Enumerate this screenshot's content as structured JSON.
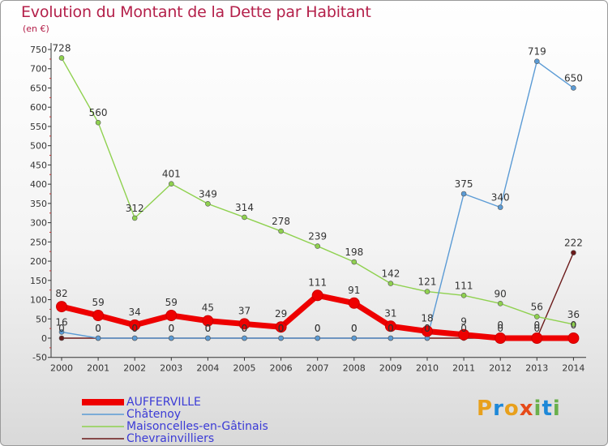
{
  "chart_data": {
    "type": "line",
    "title": "Evolution du Montant de la Dette par Habitant",
    "subtitle": "(en €)",
    "x": [
      "2000",
      "2001",
      "2002",
      "2003",
      "2004",
      "2005",
      "2006",
      "2007",
      "2008",
      "2009",
      "2010",
      "2011",
      "2012",
      "2013",
      "2014"
    ],
    "ylim": [
      -50,
      750
    ],
    "yticks": [
      -50,
      0,
      50,
      100,
      150,
      200,
      250,
      300,
      350,
      400,
      450,
      500,
      550,
      600,
      650,
      700,
      750
    ],
    "grid": false,
    "legend_position": "bottom-left",
    "series": [
      {
        "name": "AUFFERVILLE",
        "color": "#ee0000",
        "values": [
          82,
          59,
          34,
          59,
          45,
          37,
          29,
          111,
          91,
          31,
          18,
          9,
          0,
          0,
          0
        ],
        "labels": [
          "82",
          "59",
          "34",
          "59",
          "45",
          "37",
          "29",
          "111",
          "91",
          "31",
          "18",
          "9",
          "0",
          "0",
          "0"
        ]
      },
      {
        "name": "Châtenoy",
        "color": "#5b9bd5",
        "values": [
          16,
          0,
          0,
          0,
          0,
          0,
          0,
          0,
          0,
          0,
          0,
          375,
          340,
          719,
          650
        ],
        "labels": [
          "16",
          "0",
          "0",
          "0",
          "0",
          "0",
          "0",
          "0",
          "0",
          "0",
          "0",
          "375",
          "340",
          "719",
          "650"
        ]
      },
      {
        "name": "Maisoncelles-en-Gâtinais",
        "color": "#8fd14f",
        "values": [
          728,
          560,
          312,
          401,
          349,
          314,
          278,
          239,
          198,
          142,
          121,
          111,
          90,
          56,
          36
        ],
        "labels": [
          "728",
          "560",
          "312",
          "401",
          "349",
          "314",
          "278",
          "239",
          "198",
          "142",
          "121",
          "111",
          "90",
          "56",
          "36"
        ]
      },
      {
        "name": "Chevrainvilliers",
        "color": "#6b1a1a",
        "values": [
          0,
          0,
          0,
          0,
          0,
          0,
          0,
          0,
          0,
          0,
          0,
          0,
          0,
          0,
          222
        ],
        "labels": [
          "0",
          "0",
          "0",
          "0",
          "0",
          "0",
          "0",
          "0",
          "0",
          "0",
          "0",
          "0",
          "0",
          "0",
          "222"
        ]
      }
    ]
  },
  "logo": {
    "letters": [
      "P",
      "r",
      "o",
      "x",
      "i",
      "t",
      "i"
    ]
  }
}
